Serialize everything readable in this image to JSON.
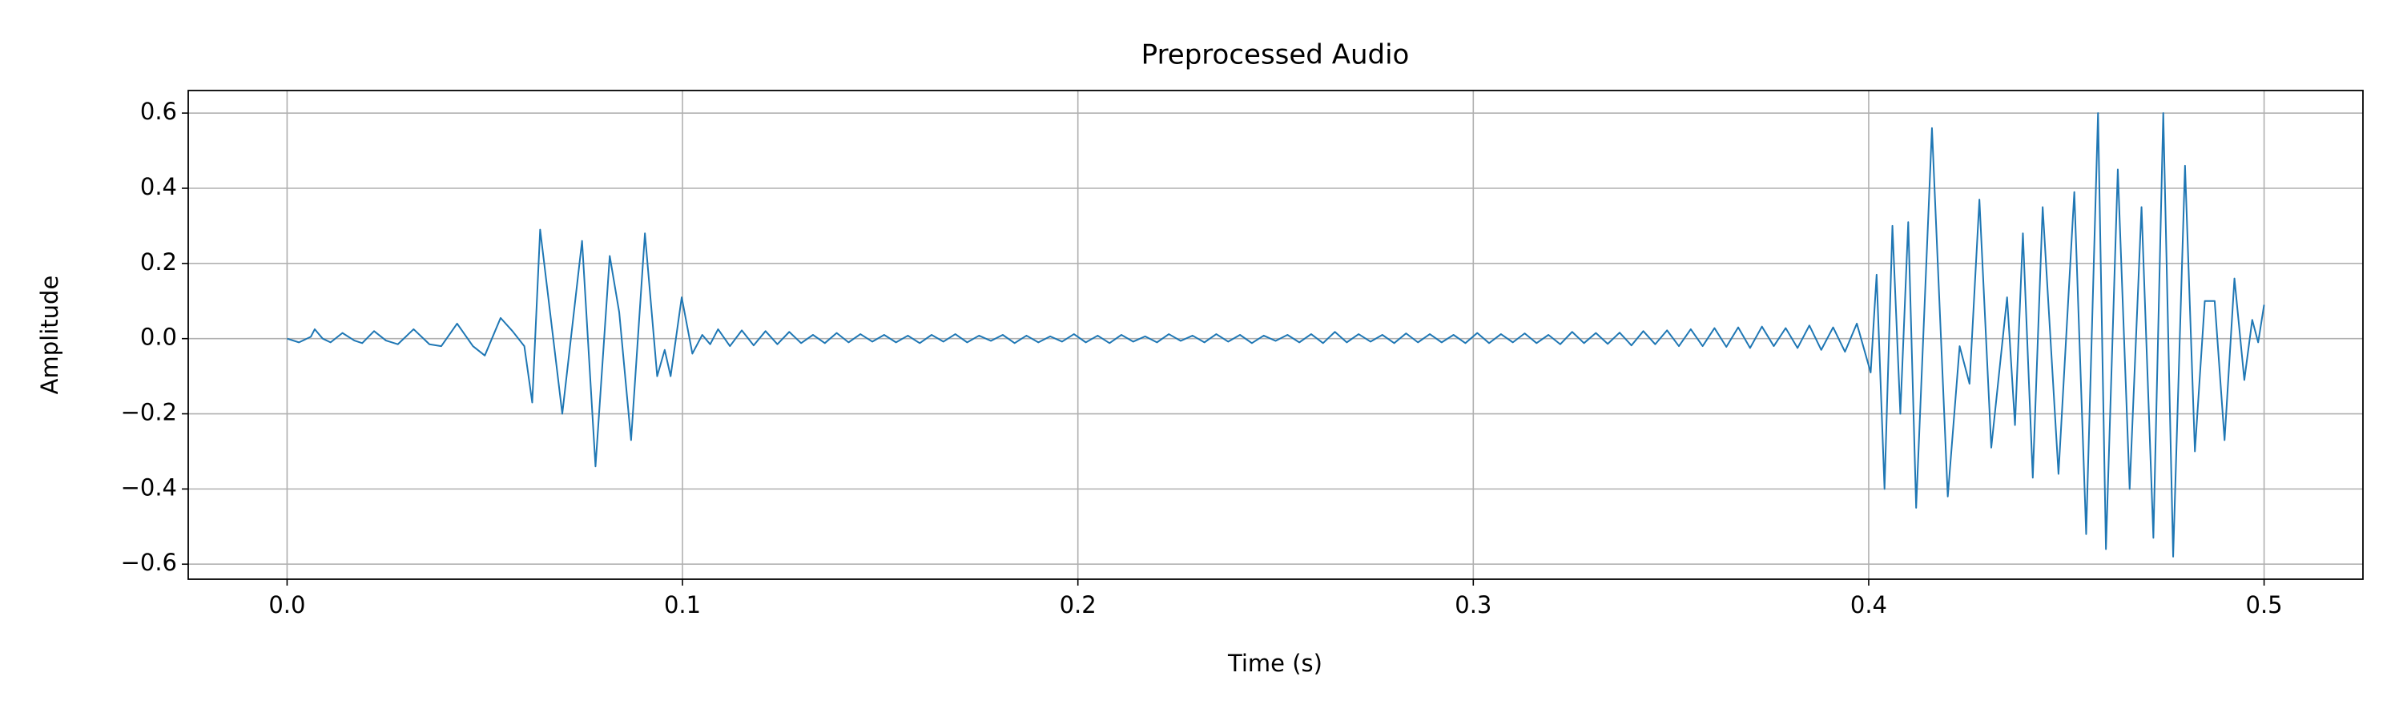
{
  "chart_data": {
    "type": "line",
    "title": "Preprocessed Audio",
    "xlabel": "Time (s)",
    "ylabel": "Amplitude",
    "color": "#1f77b4",
    "grid": true,
    "xlim": [
      -0.025,
      0.525
    ],
    "ylim": [
      -0.64,
      0.66
    ],
    "xticks": [
      {
        "value": 0,
        "label": "0.0"
      },
      0.1,
      0.2,
      0.3,
      0.4,
      0.5
    ],
    "yticks": [
      {
        "value": -0.6,
        "label": "−0.6"
      },
      {
        "value": -0.4,
        "label": "−0.4"
      },
      {
        "value": -0.2,
        "label": "−0.2"
      },
      {
        "value": 0,
        "label": "0.0"
      },
      0.2,
      0.4,
      0.6
    ],
    "x": [
      0,
      0.003,
      0.006,
      0.007,
      0.009,
      0.011,
      0.014,
      0.017,
      0.019,
      0.022,
      0.025,
      0.028,
      0.032,
      0.036,
      0.039,
      0.043,
      0.047,
      0.05,
      0.054,
      0.057,
      0.06,
      0.062,
      0.064,
      0.0696,
      0.0746,
      0.078,
      0.0816,
      0.084,
      0.087,
      0.0905,
      0.0936,
      0.0955,
      0.097,
      0.0998,
      0.1025,
      0.105,
      0.107,
      0.109,
      0.112,
      0.115,
      0.118,
      0.121,
      0.124,
      0.127,
      0.13,
      0.133,
      0.136,
      0.139,
      0.142,
      0.145,
      0.148,
      0.151,
      0.154,
      0.157,
      0.16,
      0.163,
      0.166,
      0.169,
      0.172,
      0.175,
      0.178,
      0.181,
      0.184,
      0.187,
      0.19,
      0.193,
      0.196,
      0.199,
      0.202,
      0.205,
      0.208,
      0.211,
      0.214,
      0.217,
      0.22,
      0.223,
      0.226,
      0.229,
      0.232,
      0.235,
      0.238,
      0.241,
      0.244,
      0.247,
      0.25,
      0.253,
      0.256,
      0.259,
      0.262,
      0.265,
      0.268,
      0.271,
      0.274,
      0.277,
      0.28,
      0.283,
      0.286,
      0.289,
      0.292,
      0.295,
      0.298,
      0.301,
      0.304,
      0.307,
      0.31,
      0.313,
      0.316,
      0.319,
      0.322,
      0.325,
      0.328,
      0.331,
      0.334,
      0.337,
      0.34,
      0.343,
      0.346,
      0.349,
      0.352,
      0.355,
      0.358,
      0.361,
      0.364,
      0.367,
      0.37,
      0.373,
      0.376,
      0.379,
      0.382,
      0.385,
      0.388,
      0.391,
      0.394,
      0.397,
      0.4005,
      0.402,
      0.404,
      0.406,
      0.408,
      0.41,
      0.412,
      0.416,
      0.42,
      0.423,
      0.4255,
      0.428,
      0.431,
      0.435,
      0.437,
      0.439,
      0.4415,
      0.444,
      0.448,
      0.452,
      0.455,
      0.458,
      0.46,
      0.463,
      0.466,
      0.469,
      0.472,
      0.4745,
      0.477,
      0.48,
      0.4825,
      0.485,
      0.4875,
      0.49,
      0.4925,
      0.495,
      0.497,
      0.4985,
      0.5
    ],
    "values": [
      0,
      -0.01,
      0.005,
      0.025,
      0,
      -0.01,
      0.015,
      -0.005,
      -0.012,
      0.02,
      -0.005,
      -0.015,
      0.025,
      -0.015,
      -0.02,
      0.04,
      -0.02,
      -0.045,
      0.055,
      0.02,
      -0.02,
      -0.17,
      0.29,
      -0.2,
      0.26,
      -0.34,
      0.22,
      0.07,
      -0.27,
      0.28,
      -0.1,
      -0.03,
      -0.1,
      0.11,
      -0.04,
      0.01,
      -0.015,
      0.025,
      -0.02,
      0.022,
      -0.018,
      0.02,
      -0.015,
      0.018,
      -0.012,
      0.01,
      -0.012,
      0.015,
      -0.01,
      0.012,
      -0.008,
      0.01,
      -0.01,
      0.008,
      -0.012,
      0.01,
      -0.008,
      0.012,
      -0.01,
      0.008,
      -0.006,
      0.01,
      -0.012,
      0.008,
      -0.01,
      0.006,
      -0.008,
      0.012,
      -0.01,
      0.008,
      -0.012,
      0.01,
      -0.008,
      0.006,
      -0.01,
      0.012,
      -0.006,
      0.008,
      -0.01,
      0.012,
      -0.008,
      0.01,
      -0.012,
      0.008,
      -0.006,
      0.01,
      -0.01,
      0.012,
      -0.012,
      0.018,
      -0.01,
      0.012,
      -0.008,
      0.01,
      -0.012,
      0.014,
      -0.01,
      0.012,
      -0.01,
      0.01,
      -0.012,
      0.015,
      -0.012,
      0.012,
      -0.01,
      0.014,
      -0.012,
      0.01,
      -0.015,
      0.018,
      -0.012,
      0.015,
      -0.014,
      0.016,
      -0.018,
      0.02,
      -0.015,
      0.022,
      -0.02,
      0.025,
      -0.02,
      0.028,
      -0.022,
      0.03,
      -0.025,
      0.032,
      -0.02,
      0.028,
      -0.025,
      0.035,
      -0.03,
      0.03,
      -0.035,
      0.04,
      -0.09,
      0.17,
      -0.4,
      0.3,
      -0.2,
      0.31,
      -0.45,
      0.56,
      -0.42,
      -0.02,
      -0.12,
      0.37,
      -0.29,
      0.11,
      -0.23,
      0.28,
      -0.37,
      0.35,
      -0.36,
      0.39,
      -0.52,
      0.6,
      -0.56,
      0.45,
      -0.4,
      0.35,
      -0.53,
      0.6,
      -0.58,
      0.46,
      -0.3,
      0.1,
      0.1,
      -0.27,
      0.16,
      -0.11,
      0.05,
      -0.01,
      0.09
    ]
  }
}
